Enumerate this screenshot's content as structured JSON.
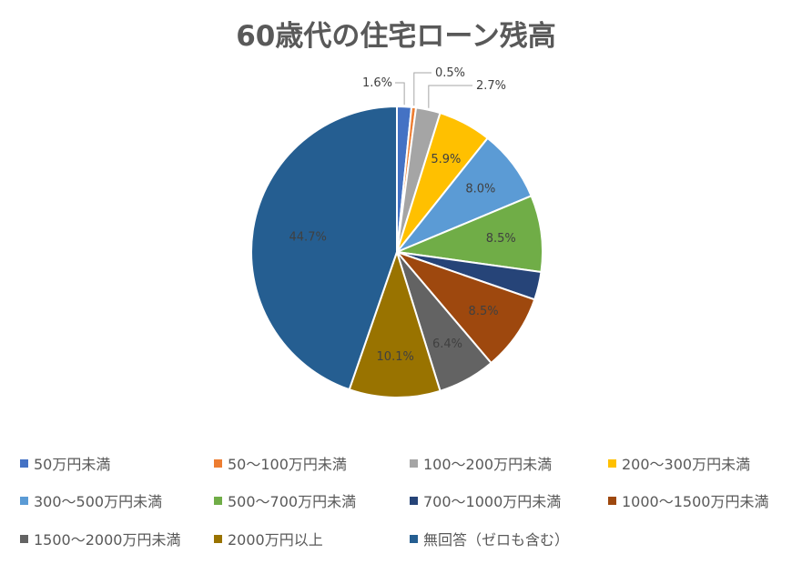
{
  "chart_data": {
    "type": "pie",
    "title": "60歳代の住宅ローン残高",
    "categories": [
      "50万円未満",
      "50〜100万円未満",
      "100〜200万円未満",
      "200〜300万円未満",
      "300〜500万円未満",
      "500〜700万円未満",
      "700〜1000万円未満",
      "1000〜1500万円未満",
      "1500〜2000万円未満",
      "2000万円以上",
      "無回答（ゼロも含む）"
    ],
    "values": [
      1.6,
      0.5,
      2.7,
      5.9,
      8.0,
      8.5,
      3.1,
      8.5,
      6.4,
      10.1,
      44.7
    ],
    "labels": [
      "1.6%",
      "0.5%",
      "2.7%",
      "5.9%",
      "8.0%",
      "8.5%",
      "",
      "8.5%",
      "6.4%",
      "10.1%",
      "44.7%"
    ],
    "colors": [
      "#4472C4",
      "#ED7D31",
      "#A5A5A5",
      "#FFC000",
      "#5B9BD5",
      "#70AD47",
      "#264478",
      "#9E480E",
      "#636363",
      "#997300",
      "#255E91"
    ],
    "legend_position": "bottom"
  }
}
